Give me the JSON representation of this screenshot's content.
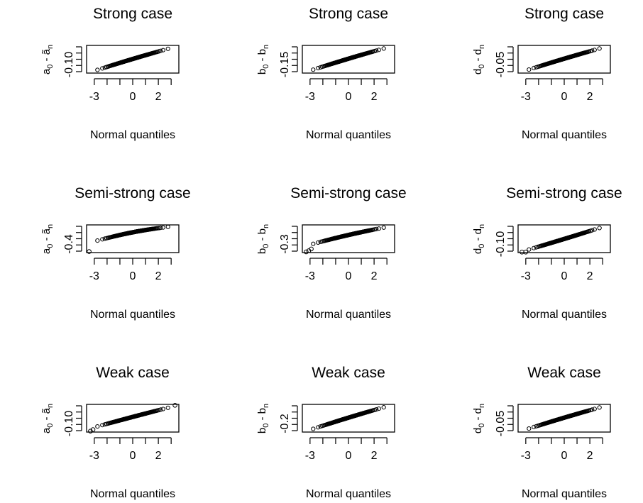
{
  "figure": {
    "x_axis_label": "Normal quantiles",
    "x_tick_labels": [
      "-3",
      "0",
      "2"
    ],
    "marker": "open-circle"
  },
  "chart_data": [
    {
      "type": "scatter",
      "title": "Strong case",
      "xlabel": "Normal quantiles",
      "ylabel": {
        "main": "a",
        "sub1": "0",
        "mid": " - ",
        "hat": "ã",
        "sub2": "n"
      },
      "y_tick_labels": [
        "-0.10"
      ],
      "xlim": [
        -3.6,
        3.6
      ],
      "ylim": [
        -0.12,
        0.14
      ],
      "qq": {
        "q_min": -3.4,
        "q_max": 3.4,
        "y_start": -0.115,
        "y_end": 0.13,
        "curve": 0.02
      }
    },
    {
      "type": "scatter",
      "title": "Strong case",
      "xlabel": "Normal quantiles",
      "ylabel": {
        "main": "b",
        "sub1": "0",
        "mid": " - ",
        "hat": "b",
        "sub2": "n"
      },
      "y_tick_labels": [
        "-0.15"
      ],
      "xlim": [
        -3.6,
        3.6
      ],
      "ylim": [
        -0.17,
        0.19
      ],
      "qq": {
        "q_min": -3.4,
        "q_max": 3.4,
        "y_start": -0.16,
        "y_end": 0.18,
        "curve": 0.02
      }
    },
    {
      "type": "scatter",
      "title": "Strong case",
      "xlabel": "Normal quantiles",
      "ylabel": {
        "main": "d",
        "sub1": "0",
        "mid": " - ",
        "hat": "d",
        "sub2": "n"
      },
      "y_tick_labels": [
        "-0.05"
      ],
      "xlim": [
        -3.6,
        3.6
      ],
      "ylim": [
        -0.062,
        0.07
      ],
      "qq": {
        "q_min": -3.4,
        "q_max": 3.4,
        "y_start": -0.058,
        "y_end": 0.066,
        "curve": 0.02
      }
    },
    {
      "type": "scatter",
      "title": "Semi-strong case",
      "xlabel": "Normal quantiles",
      "ylabel": {
        "main": "a",
        "sub1": "0",
        "mid": " - ",
        "hat": "ã",
        "sub2": "n"
      },
      "y_tick_labels": [
        "-0.4"
      ],
      "xlim": [
        -3.6,
        3.6
      ],
      "ylim": [
        -0.6,
        0.25
      ],
      "qq": {
        "q_min": -3.4,
        "q_max": 3.4,
        "y_start": -0.3,
        "y_end": 0.22,
        "curve": 0.12
      },
      "outliers": [
        [
          -3.4,
          -0.57
        ]
      ]
    },
    {
      "type": "scatter",
      "title": "Semi-strong case",
      "xlabel": "Normal quantiles",
      "ylabel": {
        "main": "b",
        "sub1": "0",
        "mid": " - ",
        "hat": "b",
        "sub2": "n"
      },
      "y_tick_labels": [
        "-0.3"
      ],
      "xlim": [
        -3.6,
        3.6
      ],
      "ylim": [
        -0.38,
        0.38
      ],
      "qq": {
        "q_min": -3.4,
        "q_max": 3.4,
        "y_start": -0.2,
        "y_end": 0.35,
        "curve": 0.05
      },
      "outliers": [
        [
          -3.3,
          -0.36
        ],
        [
          -3.1,
          -0.33
        ],
        [
          -2.9,
          -0.28
        ]
      ]
    },
    {
      "type": "scatter",
      "title": "Semi-strong case",
      "xlabel": "Normal quantiles",
      "ylabel": {
        "main": "d",
        "sub1": "0",
        "mid": " - ",
        "hat": "d",
        "sub2": "n"
      },
      "y_tick_labels": [
        "-0.10"
      ],
      "xlim": [
        -3.6,
        3.6
      ],
      "ylim": [
        -0.13,
        0.16
      ],
      "qq": {
        "q_min": -2.8,
        "q_max": 3.4,
        "y_start": -0.1,
        "y_end": 0.155,
        "curve": -0.01
      },
      "outliers": [
        [
          -3.3,
          -0.125
        ],
        [
          -3.0,
          -0.125
        ]
      ]
    },
    {
      "type": "scatter",
      "title": "Weak case",
      "xlabel": "Normal quantiles",
      "ylabel": {
        "main": "a",
        "sub1": "0",
        "mid": " - ",
        "hat": "ã",
        "sub2": "n"
      },
      "y_tick_labels": [
        "-0.10"
      ],
      "xlim": [
        -3.6,
        3.6
      ],
      "ylim": [
        -0.13,
        0.16
      ],
      "qq": {
        "q_min": -3.0,
        "q_max": 3.2,
        "y_start": -0.08,
        "y_end": 0.14,
        "curve": 0.01
      },
      "outliers": [
        [
          -3.3,
          -0.12
        ],
        [
          -3.1,
          -0.105
        ],
        [
          3.3,
          0.15
        ]
      ]
    },
    {
      "type": "scatter",
      "title": "Weak case",
      "xlabel": "Normal quantiles",
      "ylabel": {
        "main": "b",
        "sub1": "0",
        "mid": " - ",
        "hat": "b",
        "sub2": "n"
      },
      "y_tick_labels": [
        "-0.2"
      ],
      "xlim": [
        -3.6,
        3.6
      ],
      "ylim": [
        -0.25,
        0.29
      ],
      "qq": {
        "q_min": -3.4,
        "q_max": 3.4,
        "y_start": -0.24,
        "y_end": 0.28,
        "curve": 0.02
      }
    },
    {
      "type": "scatter",
      "title": "Weak case",
      "xlabel": "Normal quantiles",
      "ylabel": {
        "main": "d",
        "sub1": "0",
        "mid": " - ",
        "hat": "d",
        "sub2": "n"
      },
      "y_tick_labels": [
        "-0.05"
      ],
      "xlim": [
        -3.6,
        3.6
      ],
      "ylim": [
        -0.062,
        0.07
      ],
      "qq": {
        "q_min": -3.4,
        "q_max": 3.4,
        "y_start": -0.058,
        "y_end": 0.066,
        "curve": 0.02
      }
    }
  ]
}
